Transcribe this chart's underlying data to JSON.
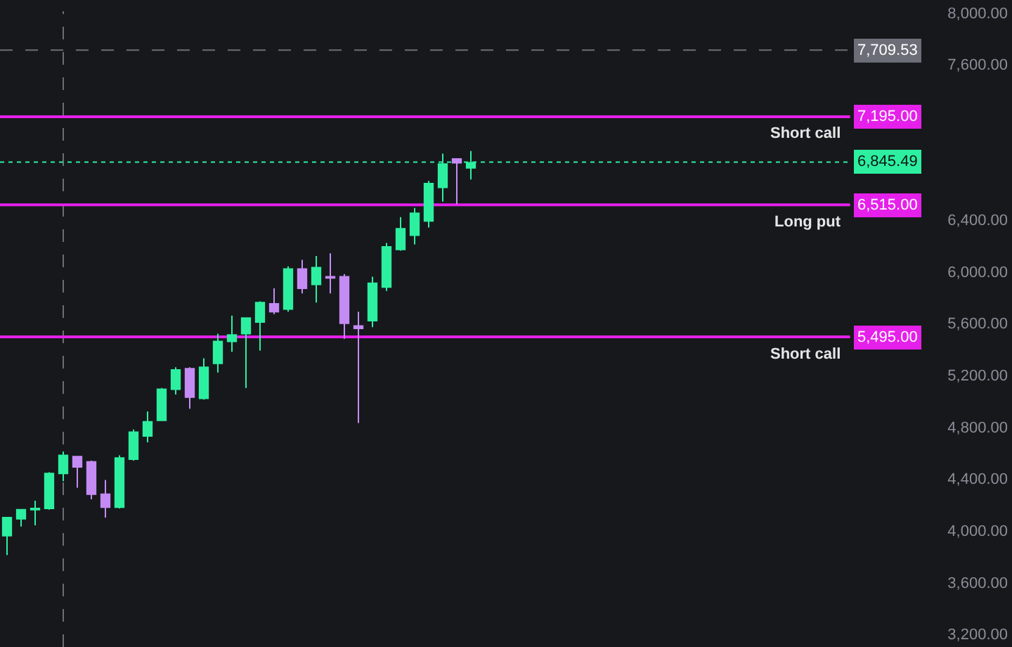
{
  "chart_data": {
    "type": "candlestick",
    "categories": [
      null,
      null,
      null,
      null,
      null,
      null,
      null,
      null,
      null,
      null,
      null,
      null,
      null,
      null,
      null,
      null,
      null,
      null,
      null,
      null,
      null,
      null,
      null,
      null,
      null,
      null,
      null,
      null,
      null,
      null,
      null,
      null,
      null,
      null,
      null,
      null,
      null,
      null,
      null,
      null,
      null,
      null,
      null,
      null,
      null,
      null,
      null,
      null,
      null,
      null,
      null,
      null,
      null,
      null,
      null,
      null,
      null,
      null,
      null,
      null,
      null,
      null,
      null,
      null,
      null,
      null,
      null,
      null,
      null,
      null,
      null,
      null
    ],
    "ohlc": [
      [
        3960,
        4100,
        3810,
        4100
      ],
      [
        4090,
        4160,
        4030,
        4160
      ],
      [
        4160,
        4230,
        4040,
        4170
      ],
      [
        4170,
        4450,
        4160,
        4440
      ],
      [
        4440,
        4610,
        4380,
        4580
      ],
      [
        4570,
        4570,
        4330,
        4490
      ],
      [
        4530,
        4540,
        4240,
        4280
      ],
      [
        4280,
        4390,
        4100,
        4180
      ],
      [
        4180,
        4580,
        4170,
        4560
      ],
      [
        4550,
        4780,
        4540,
        4760
      ],
      [
        4730,
        4920,
        4680,
        4840
      ],
      [
        4850,
        5100,
        4850,
        5090
      ],
      [
        5090,
        5260,
        5050,
        5240
      ],
      [
        5250,
        5260,
        4940,
        5030
      ],
      [
        5020,
        5330,
        5010,
        5260
      ],
      [
        5290,
        5520,
        5220,
        5460
      ],
      [
        5460,
        5660,
        5380,
        5510
      ],
      [
        5520,
        5640,
        5100,
        5640
      ],
      [
        5610,
        5770,
        5390,
        5760
      ],
      [
        5750,
        5870,
        5670,
        5690
      ],
      [
        5710,
        6040,
        5690,
        6020
      ],
      [
        6020,
        6090,
        5830,
        5870
      ],
      [
        5900,
        6120,
        5760,
        6030
      ],
      [
        5960,
        6140,
        5830,
        5950
      ],
      [
        5960,
        5980,
        5480,
        5600
      ],
      [
        5580,
        5690,
        4830,
        5560
      ],
      [
        5620,
        5960,
        5570,
        5910
      ],
      [
        5880,
        6220,
        5850,
        6190
      ],
      [
        6170,
        6420,
        6160,
        6330
      ],
      [
        6280,
        6490,
        6210,
        6450
      ],
      [
        6390,
        6700,
        6340,
        6680
      ],
      [
        6650,
        6910,
        6540,
        6830
      ],
      [
        6870,
        6870,
        6520,
        6840
      ],
      [
        6800,
        6930,
        6710,
        6840
      ],
      null,
      null,
      null,
      null,
      null,
      null,
      null,
      null,
      null,
      null,
      null,
      null,
      null,
      null,
      null,
      null,
      null,
      null,
      null,
      null,
      null,
      null,
      null,
      null,
      null,
      null,
      null,
      null,
      null,
      null,
      null,
      null,
      null,
      null,
      null,
      null,
      null,
      null
    ],
    "colors": [
      "#2cf0a0",
      "#2cf0a0",
      "#2cf0a0",
      "#2cf0a0",
      "#2cf0a0",
      "#c58bf5",
      "#c58bf5",
      "#c58bf5",
      "#2cf0a0",
      "#2cf0a0",
      "#2cf0a0",
      "#2cf0a0",
      "#2cf0a0",
      "#c58bf5",
      "#2cf0a0",
      "#2cf0a0",
      "#2cf0a0",
      "#2cf0a0",
      "#2cf0a0",
      "#c58bf5",
      "#2cf0a0",
      "#c58bf5",
      "#2cf0a0",
      "#c58bf5",
      "#c58bf5",
      "#c58bf5",
      "#2cf0a0",
      "#2cf0a0",
      "#2cf0a0",
      "#2cf0a0",
      "#2cf0a0",
      "#2cf0a0",
      "#c58bf5",
      "#2cf0a0",
      null,
      null,
      null,
      null,
      null,
      null,
      null,
      null,
      null,
      null,
      null,
      null,
      null,
      null,
      null,
      null,
      null,
      null,
      null,
      null,
      null,
      null,
      null,
      null,
      null,
      null,
      null,
      null,
      null,
      null,
      null,
      null,
      null,
      null,
      null,
      null,
      null,
      null
    ],
    "ylim": [
      3100,
      8010
    ],
    "yticks": [
      {
        "value": 3200,
        "label": "3,200.00"
      },
      {
        "value": 3600,
        "label": "3,600.00"
      },
      {
        "value": 4000,
        "label": "4,000.00"
      },
      {
        "value": 4400,
        "label": "4,400.00"
      },
      {
        "value": 4800,
        "label": "4,800.00"
      },
      {
        "value": 5200,
        "label": "5,200.00"
      },
      {
        "value": 5600,
        "label": "5,600.00"
      },
      {
        "value": 6000,
        "label": "6,000.00"
      },
      {
        "value": 6400,
        "label": "6,400.00"
      },
      {
        "value": 7600,
        "label": "7,600.00"
      },
      {
        "value": 8000,
        "label": "8,000.00"
      }
    ],
    "tick_labels": "y",
    "ref_lines": [
      {
        "axis": "y",
        "value": 7709.53,
        "label": "7,709.53",
        "color": "#6b6e77",
        "line_style": "dashed"
      },
      {
        "axis": "y",
        "value": 7195,
        "label": "7,195.00",
        "color": "#e620eb",
        "line_style": "solid"
      },
      {
        "axis": "y",
        "value": 6845.49,
        "label": "6,845.49",
        "color": "#2cf0a0",
        "line_style": "dotted"
      },
      {
        "axis": "y",
        "value": 6515,
        "label": "6,515.00",
        "color": "#e620eb",
        "line_style": "solid"
      },
      {
        "axis": "y",
        "value": 5495,
        "label": "5,495.00",
        "color": "#e620eb",
        "line_style": "solid"
      }
    ],
    "annotations": [
      {
        "text": "Short call",
        "y": 7195
      },
      {
        "text": "Long put",
        "y": 6515
      },
      {
        "text": "Short call",
        "y": 5495
      }
    ]
  }
}
